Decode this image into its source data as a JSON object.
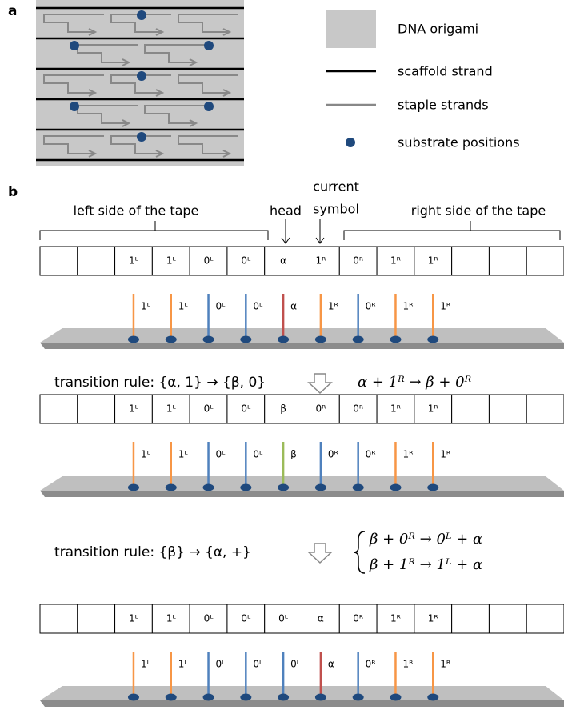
{
  "panel_a": {
    "label": "a",
    "legend": [
      "DNA origami",
      "scaffold strand",
      "staple strands",
      "substrate positions"
    ]
  },
  "panel_b": {
    "label": "b",
    "header": {
      "left": "left side of the tape",
      "head": "head",
      "current": "current",
      "symbol": "symbol",
      "right": "right side of the tape"
    },
    "colors": {
      "1": "#f79646",
      "0": "#4f81bd",
      "α": "#c0504d",
      "β": "#9bbb59"
    },
    "tapes": [
      {
        "cells": [
          null,
          null,
          "1ᴸ",
          "1ᴸ",
          "0ᴸ",
          "0ᴸ",
          "α",
          "1ᴿ",
          "0ᴿ",
          "1ᴿ",
          "1ᴿ",
          null,
          null,
          null
        ]
      },
      {
        "cells": [
          null,
          null,
          "1ᴸ",
          "1ᴸ",
          "0ᴸ",
          "0ᴸ",
          "β",
          "0ᴿ",
          "0ᴿ",
          "1ᴿ",
          "1ᴿ",
          null,
          null,
          null
        ]
      },
      {
        "cells": [
          null,
          null,
          "1ᴸ",
          "1ᴸ",
          "0ᴸ",
          "0ᴸ",
          "0ᴸ",
          "α",
          "0ᴿ",
          "1ᴿ",
          "1ᴿ",
          null,
          null,
          null
        ]
      }
    ],
    "rules": [
      {
        "text": "transition rule: {α, 1} → {β, 0}",
        "equations": [
          "α + 1ᴿ → β + 0ᴿ"
        ]
      },
      {
        "text": "transition rule: {β} → {α, +}",
        "equations": [
          "β + 0ᴿ → 0ᴸ + α",
          "β + 1ᴿ → 1ᴸ + α"
        ]
      }
    ]
  }
}
